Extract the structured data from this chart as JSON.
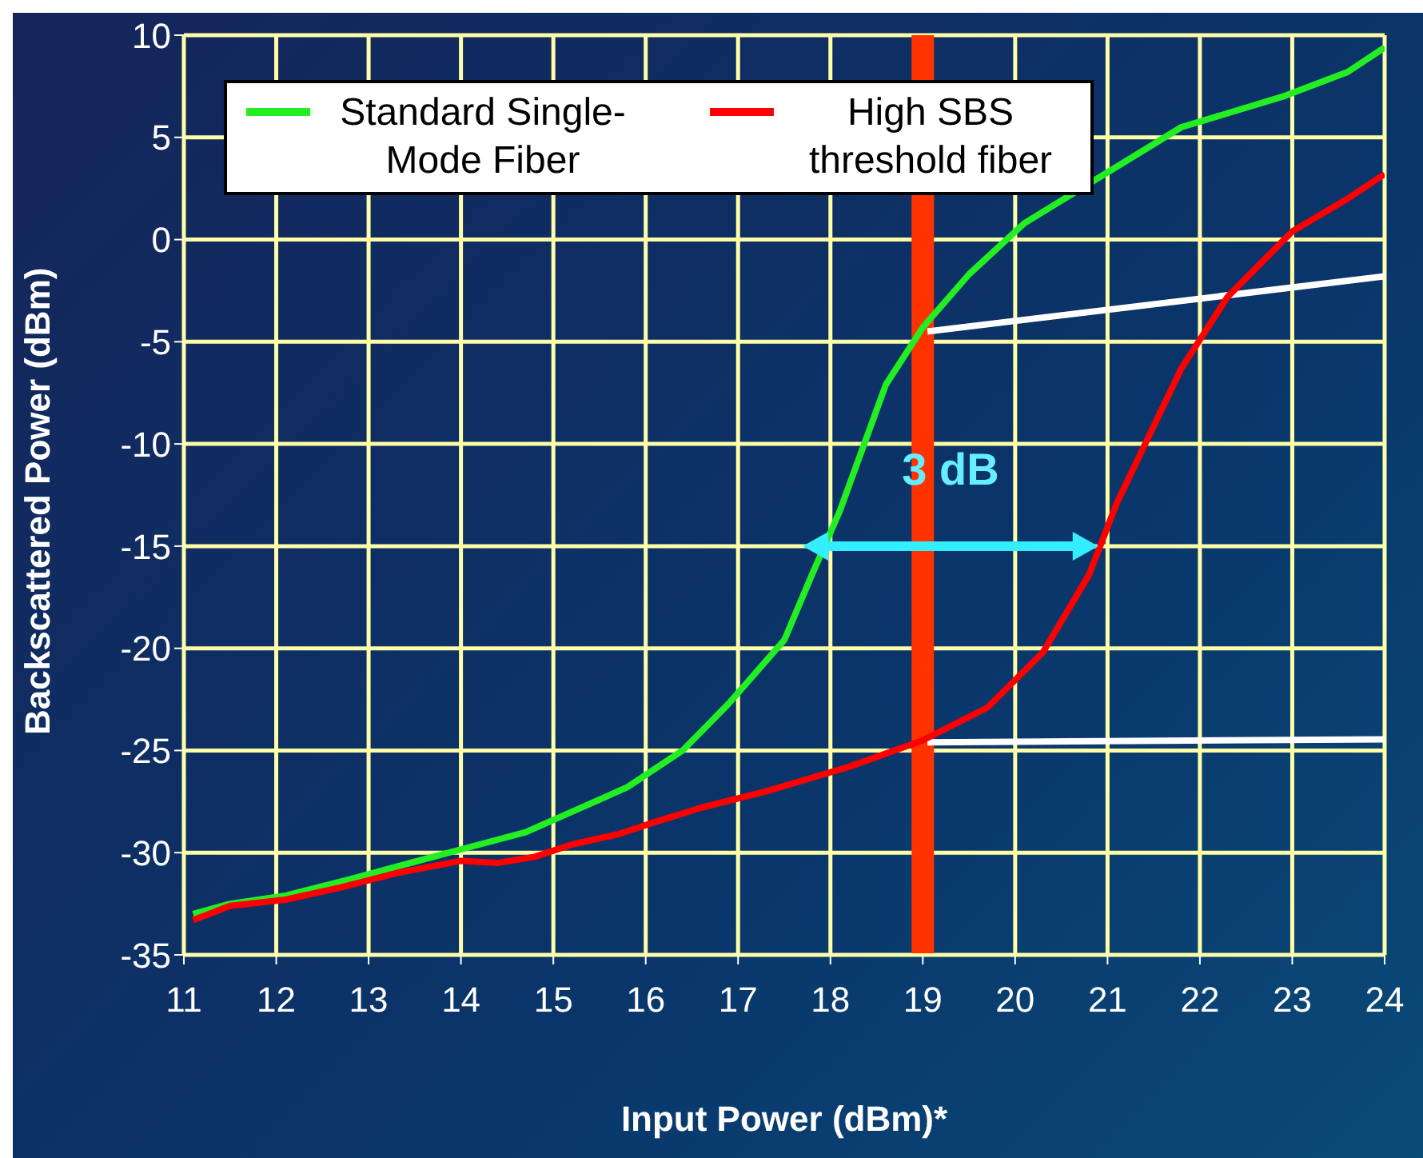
{
  "chart_data": {
    "type": "line",
    "xlabel": "Input Power (dBm)*",
    "ylabel": "Backscattered Power (dBm)",
    "xlim": [
      11,
      24
    ],
    "xticks": [
      11,
      12,
      13,
      14,
      15,
      16,
      17,
      18,
      19,
      20,
      21,
      22,
      23,
      24
    ],
    "ylim": [
      -35,
      10
    ],
    "yticks": [
      -35,
      -30,
      -25,
      -20,
      -15,
      -10,
      -5,
      0,
      5,
      10
    ],
    "grid": true,
    "legend": "top left",
    "line_style": "solid",
    "marker": "none",
    "series": [
      {
        "color": "#ffffff",
        "x": [
          19.05,
          24
        ],
        "values": [
          -4.5,
          -1.8
        ]
      },
      {
        "color": "#ffffff",
        "x": [
          19.05,
          24
        ],
        "values": [
          -24.6,
          -24.45
        ]
      },
      {
        "name": "Standard Single-Mode Fiber",
        "color": "#22ee22",
        "x": [
          11.1,
          11.5,
          12.1,
          12.8,
          13.7,
          14.2,
          14.7,
          15.2,
          15.8,
          16.4,
          16.9,
          17.5,
          17.8,
          18.1,
          18.6,
          19.0,
          19.5,
          20.1,
          21.8,
          22.9,
          23.6,
          24
        ],
        "values": [
          -33,
          -32.5,
          -32.1,
          -31.3,
          -30.2,
          -29.6,
          -29,
          -28,
          -26.8,
          -25,
          -22.7,
          -19.6,
          -16.4,
          -13.3,
          -7.1,
          -4.3,
          -1.7,
          0.8,
          5.5,
          7,
          8.2,
          9.4
        ]
      },
      {
        "name": "High SBS threshold fiber",
        "color": "#ff0000",
        "x": [
          11.1,
          11.5,
          12.1,
          12.7,
          13.3,
          14.0,
          14.4,
          14.8,
          15.2,
          15.7,
          16.1,
          16.6,
          17.3,
          18.2,
          19.0,
          19.7,
          20.3,
          20.8,
          21.1,
          21.8,
          22.3,
          23.0,
          23.6,
          24
        ],
        "values": [
          -33.3,
          -32.6,
          -32.3,
          -31.7,
          -31,
          -30.4,
          -30.5,
          -30.2,
          -29.6,
          -29.1,
          -28.5,
          -27.8,
          -27,
          -25.8,
          -24.5,
          -22.9,
          -20.2,
          -16.4,
          -12.9,
          -6.3,
          -2.8,
          0.4,
          2,
          3.2
        ]
      }
    ],
    "ref_lines": [
      {
        "axis": "x",
        "value": 19,
        "color": "#ff3300"
      }
    ],
    "annotations": [
      "3 dB"
    ]
  }
}
